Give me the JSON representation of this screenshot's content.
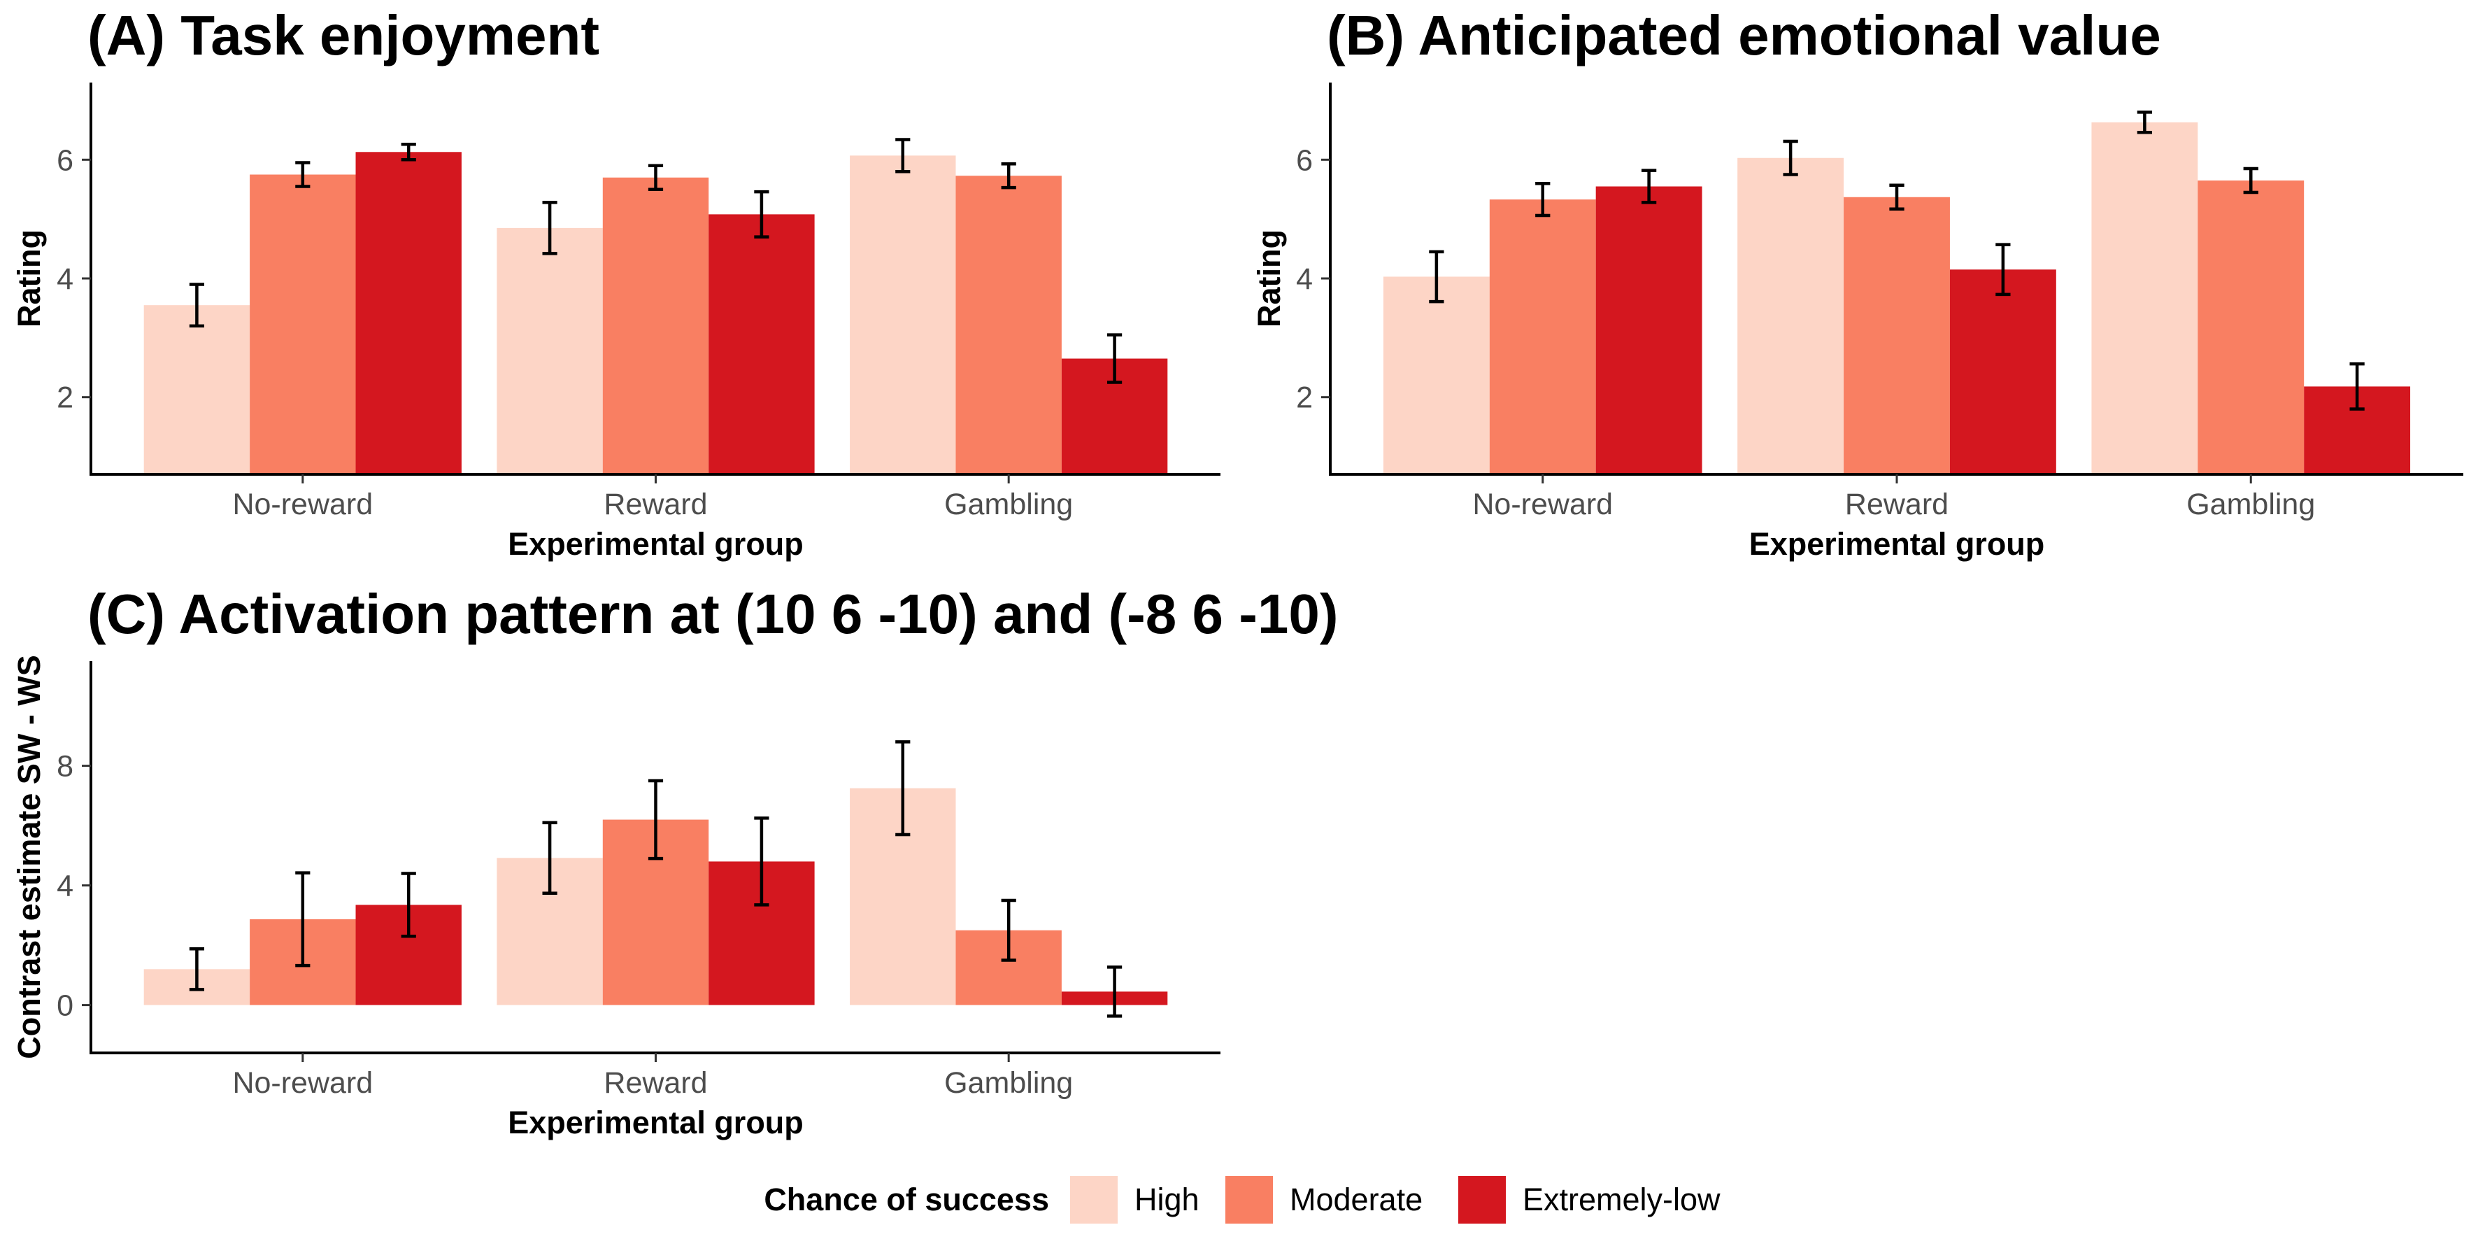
{
  "colors": {
    "High": "#fdd5c6",
    "Moderate": "#f97f62",
    "Extremely-low": "#d4171f"
  },
  "legend": {
    "title": "Chance of success",
    "items": [
      "High",
      "Moderate",
      "Extremely-low"
    ]
  },
  "chart_data": [
    {
      "type": "bar",
      "title": "(A) Task enjoyment",
      "xlabel": "Experimental group",
      "ylabel": "Rating",
      "categories": [
        "No-reward",
        "Reward",
        "Gambling"
      ],
      "ylim": [
        0.7,
        7.3
      ],
      "yticks": [
        2,
        4,
        6
      ],
      "baseline": 0.7,
      "series": [
        {
          "name": "High",
          "values": [
            3.55,
            4.85,
            6.07
          ],
          "errors": [
            0.35,
            0.43,
            0.27
          ]
        },
        {
          "name": "Moderate",
          "values": [
            5.75,
            5.7,
            5.73
          ],
          "errors": [
            0.2,
            0.2,
            0.2
          ]
        },
        {
          "name": "Extremely-low",
          "values": [
            6.13,
            5.08,
            2.65
          ],
          "errors": [
            0.13,
            0.38,
            0.4
          ]
        }
      ]
    },
    {
      "type": "bar",
      "title": "(B) Anticipated emotional value",
      "xlabel": "Experimental group",
      "ylabel": "Rating",
      "categories": [
        "No-reward",
        "Reward",
        "Gambling"
      ],
      "ylim": [
        0.7,
        7.3
      ],
      "yticks": [
        2,
        4,
        6
      ],
      "baseline": 0.7,
      "series": [
        {
          "name": "High",
          "values": [
            4.03,
            6.03,
            6.63
          ],
          "errors": [
            0.42,
            0.28,
            0.17
          ]
        },
        {
          "name": "Moderate",
          "values": [
            5.33,
            5.37,
            5.65
          ],
          "errors": [
            0.27,
            0.2,
            0.2
          ]
        },
        {
          "name": "Extremely-low",
          "values": [
            5.55,
            4.15,
            2.18
          ],
          "errors": [
            0.27,
            0.42,
            0.38
          ]
        }
      ]
    },
    {
      "type": "bar",
      "title": "(C) Activation pattern at (10 6 -10) and (-8 6 -10)",
      "xlabel": "Experimental group",
      "ylabel": "Contrast estimate SW - WS",
      "categories": [
        "No-reward",
        "Reward",
        "Gambling"
      ],
      "ylim": [
        -1.6,
        11.5
      ],
      "yticks": [
        0,
        4,
        8
      ],
      "baseline": 0,
      "series": [
        {
          "name": "High",
          "values": [
            1.2,
            4.92,
            7.25
          ],
          "errors": [
            0.68,
            1.18,
            1.55
          ]
        },
        {
          "name": "Moderate",
          "values": [
            2.87,
            6.2,
            2.5
          ],
          "errors": [
            1.55,
            1.3,
            1.0
          ]
        },
        {
          "name": "Extremely-low",
          "values": [
            3.35,
            4.8,
            0.45
          ],
          "errors": [
            1.05,
            1.45,
            0.82
          ]
        }
      ]
    }
  ]
}
